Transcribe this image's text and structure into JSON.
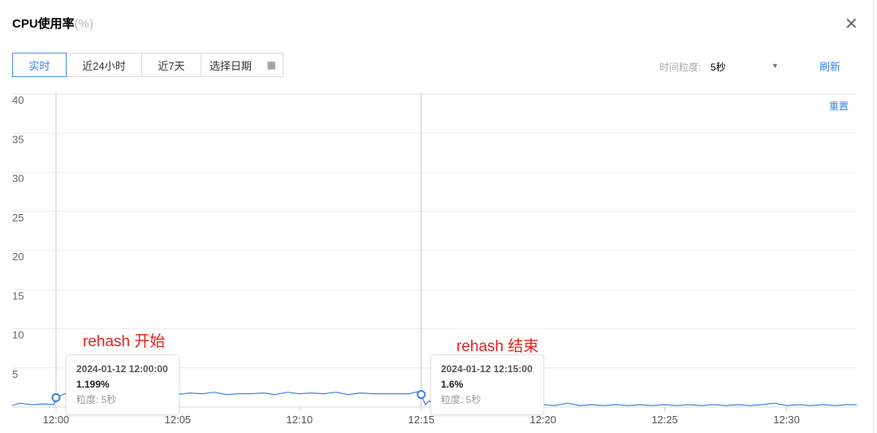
{
  "header": {
    "title": "CPU使用率",
    "unit": "(%)",
    "close_icon": "close-icon"
  },
  "tabs": [
    {
      "label": "实时",
      "active": true
    },
    {
      "label": "近24小时"
    },
    {
      "label": "近7天"
    },
    {
      "label": "选择日期",
      "icon": "calendar-icon"
    }
  ],
  "granularity": {
    "label": "时间粒度:",
    "value": "5秒"
  },
  "refresh_label": "刷新",
  "reset_label": "重置",
  "colors": {
    "accent": "#3a7ff0",
    "line": "#3d85e6",
    "annotation": "#e8211d"
  },
  "annotations": [
    {
      "text": "rehash 开始"
    },
    {
      "text": "rehash 结束"
    }
  ],
  "tooltips": [
    {
      "time": "2024-01-12 12:00:00",
      "value": "1.199%",
      "granularity": "粒度: 5秒"
    },
    {
      "time": "2024-01-12 12:15:00",
      "value": "1.6%",
      "granularity": "粒度: 5秒"
    }
  ],
  "chart_data": {
    "type": "line",
    "title": "CPU使用率(%)",
    "ylim": [
      0,
      40
    ],
    "yticks": [
      "5",
      "10",
      "15",
      "20",
      "25",
      "30",
      "35",
      "40"
    ],
    "xlim": [
      "11:58:12",
      "12:32:53"
    ],
    "xticks": [
      "12:00",
      "12:05",
      "12:10",
      "12:15",
      "12:20",
      "12:25",
      "12:30"
    ],
    "grid": true,
    "highlighted_points": [
      {
        "x": "12:00:00",
        "y": 1.199
      },
      {
        "x": "12:15:00",
        "y": 1.6
      }
    ],
    "series": [
      {
        "x": [
          "11:58:12",
          "11:58:30",
          "11:59:00",
          "11:59:30",
          "11:59:55",
          "12:00:00",
          "12:00:30",
          "12:01:00",
          "12:01:30",
          "12:02:00",
          "12:02:30",
          "12:03:00",
          "12:03:30",
          "12:04:00",
          "12:04:30",
          "12:05:00",
          "12:05:30",
          "12:06:00",
          "12:06:30",
          "12:07:00",
          "12:07:30",
          "12:08:00",
          "12:08:30",
          "12:09:00",
          "12:09:30",
          "12:10:00",
          "12:10:30",
          "12:11:00",
          "12:11:30",
          "12:12:00",
          "12:12:30",
          "12:13:00",
          "12:13:30",
          "12:14:00",
          "12:14:30",
          "12:14:55",
          "12:15:00",
          "12:15:10",
          "12:15:20",
          "12:15:30",
          "12:16:00",
          "12:16:30",
          "12:17:00",
          "12:17:30",
          "12:18:00",
          "12:18:30",
          "12:19:00",
          "12:19:30",
          "12:20:00",
          "12:20:30",
          "12:21:00",
          "12:21:30",
          "12:22:00",
          "12:22:30",
          "12:23:00",
          "12:23:30",
          "12:24:00",
          "12:24:30",
          "12:25:00",
          "12:25:30",
          "12:26:00",
          "12:26:30",
          "12:27:00",
          "12:27:30",
          "12:28:00",
          "12:28:30",
          "12:29:00",
          "12:29:30",
          "12:30:00",
          "12:30:30",
          "12:31:00",
          "12:31:30",
          "12:32:00",
          "12:32:30",
          "12:32:53"
        ],
        "y": [
          0.2,
          0.5,
          0.3,
          0.4,
          0.3,
          1.199,
          1.9,
          1.7,
          1.8,
          1.6,
          1.9,
          1.7,
          1.8,
          1.7,
          1.9,
          1.6,
          1.8,
          1.7,
          1.9,
          1.6,
          1.7,
          1.7,
          1.8,
          1.6,
          1.9,
          1.7,
          1.8,
          1.7,
          1.9,
          1.6,
          1.8,
          1.7,
          1.7,
          1.7,
          1.7,
          2.0,
          1.6,
          0.3,
          0.8,
          0.2,
          0.3,
          0.2,
          0.3,
          0.2,
          0.3,
          0.2,
          0.3,
          0.2,
          0.3,
          0.2,
          0.5,
          0.2,
          0.3,
          0.2,
          0.3,
          0.2,
          0.3,
          0.2,
          0.3,
          0.2,
          0.3,
          0.2,
          0.3,
          0.2,
          0.3,
          0.2,
          0.3,
          0.5,
          0.2,
          0.3,
          0.2,
          0.3,
          0.2,
          0.3,
          0.3
        ]
      }
    ]
  }
}
